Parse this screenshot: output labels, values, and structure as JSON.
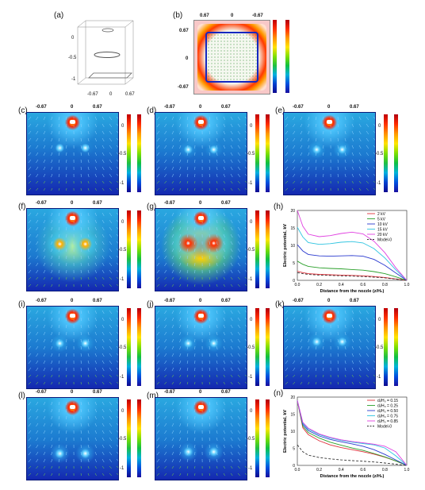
{
  "panels": {
    "a": {
      "label": "(a)",
      "y_ticks": [
        "0",
        "-0.5",
        "-1"
      ],
      "x_ticks": [
        "-0.67",
        "0",
        "0.67"
      ]
    },
    "b": {
      "label": "(b)",
      "x_ticks": [
        "0.67",
        "0",
        "-0.67"
      ],
      "y_ticks": [
        "0.67",
        "0",
        "-0.67"
      ]
    },
    "c": {
      "label": "(c)",
      "x_ticks": [
        "-0.67",
        "0",
        "0.67"
      ],
      "y_ticks": [
        "0",
        "-0.5",
        "-1"
      ]
    },
    "d": {
      "label": "(d)",
      "x_ticks": [
        "-0.67",
        "0",
        "0.67"
      ],
      "y_ticks": [
        "0",
        "-0.5",
        "-1"
      ]
    },
    "e": {
      "label": "(e)",
      "x_ticks": [
        "-0.67",
        "0",
        "0.67"
      ],
      "y_ticks": [
        "0",
        "-0.5",
        "-1"
      ]
    },
    "f": {
      "label": "(f)",
      "x_ticks": [
        "-0.67",
        "0",
        "0.67"
      ],
      "y_ticks": [
        "0",
        "-0.5",
        "-1"
      ]
    },
    "g": {
      "label": "(g)",
      "x_ticks": [
        "-0.67",
        "0",
        "0.67"
      ],
      "y_ticks": [
        "0",
        "-0.5",
        "-1"
      ]
    },
    "h": {
      "label": "(h)"
    },
    "i": {
      "label": "(i)",
      "x_ticks": [
        "-0.67",
        "0",
        "0.67"
      ],
      "y_ticks": [
        "0",
        "-0.5",
        "-1"
      ]
    },
    "j": {
      "label": "(j)",
      "x_ticks": [
        "-0.67",
        "0",
        "0.67"
      ],
      "y_ticks": [
        "0",
        "-0.5",
        "-1"
      ]
    },
    "k": {
      "label": "(k)",
      "x_ticks": [
        "-0.67",
        "0",
        "0.67"
      ],
      "y_ticks": [
        "0",
        "-0.5",
        "-1"
      ]
    },
    "l": {
      "label": "(l)",
      "x_ticks": [
        "-0.67",
        "0",
        "0.67"
      ],
      "y_ticks": [
        "0",
        "-0.5",
        "-1"
      ]
    },
    "m": {
      "label": "(m)",
      "x_ticks": [
        "-0.67",
        "0",
        "0.67"
      ],
      "y_ticks": [
        "0",
        "-0.5",
        "-1"
      ]
    },
    "n": {
      "label": "(n)"
    }
  },
  "colors": {
    "field_low": "#1220a8",
    "field_mid": "#1f9bd6",
    "hot": "#ffffff",
    "vector": "#8fd3ff",
    "vector_bottom": "#7ddc3a"
  },
  "chart_data": [
    {
      "type": "line",
      "panel": "h",
      "xlabel": "Distance from the nozzle (z/H₀)",
      "ylabel": "Electric potential, kV",
      "xlim": [
        0,
        1.0
      ],
      "ylim": [
        0,
        20
      ],
      "x_ticks": [
        "0.0",
        "0.2",
        "0.4",
        "0.6",
        "0.8",
        "1.0"
      ],
      "y_ticks": [
        "0",
        "5",
        "10",
        "15",
        "20"
      ],
      "legend_position": "top-right",
      "x": [
        0,
        0.05,
        0.1,
        0.2,
        0.3,
        0.4,
        0.5,
        0.6,
        0.7,
        0.8,
        0.9,
        1.0
      ],
      "series": [
        {
          "name": "2 kV",
          "color": "#e0303a",
          "dash": false,
          "values": [
            2.6,
            2.2,
            1.9,
            1.7,
            1.6,
            1.5,
            1.4,
            1.3,
            1.1,
            0.8,
            0.4,
            0.0
          ]
        },
        {
          "name": "5 kV",
          "color": "#2aa02a",
          "dash": false,
          "values": [
            5.5,
            4.6,
            4.0,
            3.6,
            3.4,
            3.3,
            3.1,
            2.9,
            2.5,
            1.9,
            1.0,
            0.0
          ]
        },
        {
          "name": "10 kV",
          "color": "#2a3acf",
          "dash": false,
          "values": [
            10.2,
            8.4,
            7.4,
            7.0,
            6.9,
            7.0,
            7.1,
            6.9,
            6.0,
            4.3,
            2.1,
            0.0
          ]
        },
        {
          "name": "15 kV",
          "color": "#2ec4e0",
          "dash": false,
          "values": [
            15.2,
            12.4,
            10.8,
            10.3,
            10.5,
            10.9,
            11.1,
            10.7,
            9.1,
            6.4,
            3.0,
            0.0
          ]
        },
        {
          "name": "20 kV",
          "color": "#e040e0",
          "dash": false,
          "values": [
            20.0,
            15.5,
            13.2,
            12.5,
            12.8,
            13.4,
            13.8,
            13.3,
            11.2,
            7.9,
            3.6,
            0.0
          ]
        },
        {
          "name": "Model-0",
          "color": "#333333",
          "dash": true,
          "values": [
            2.2,
            1.9,
            1.7,
            1.5,
            1.4,
            1.3,
            1.2,
            1.1,
            0.9,
            0.7,
            0.35,
            0.0
          ]
        }
      ]
    },
    {
      "type": "line",
      "panel": "n",
      "xlabel": "Distance from the nozzle (z/H₀)",
      "ylabel": "Electric potential, kV",
      "xlim": [
        0,
        1.0
      ],
      "ylim": [
        0,
        20
      ],
      "x_ticks": [
        "0.0",
        "0.2",
        "0.4",
        "0.6",
        "0.8",
        "1.0"
      ],
      "y_ticks": [
        "0",
        "5",
        "10",
        "15",
        "20"
      ],
      "legend_position": "top-right",
      "x": [
        0,
        0.05,
        0.1,
        0.2,
        0.3,
        0.4,
        0.5,
        0.6,
        0.7,
        0.8,
        0.9,
        1.0
      ],
      "series": [
        {
          "name": "dᵢ/H₀ = 0.15",
          "color": "#e0303a",
          "dash": false,
          "values": [
            19.0,
            11.0,
            9.0,
            7.2,
            6.0,
            5.2,
            4.6,
            4.0,
            3.3,
            2.4,
            1.3,
            0.0
          ]
        },
        {
          "name": "dᵢ/H₀ = 0.25",
          "color": "#2aa02a",
          "dash": false,
          "values": [
            19.0,
            11.5,
            9.6,
            8.0,
            6.8,
            5.9,
            5.1,
            4.4,
            3.5,
            2.5,
            1.3,
            0.0
          ]
        },
        {
          "name": "dᵢ/H₀ = 0.50",
          "color": "#2a3acf",
          "dash": false,
          "values": [
            19.0,
            12.0,
            10.2,
            8.6,
            7.6,
            6.9,
            6.3,
            5.6,
            4.6,
            3.2,
            1.6,
            0.0
          ]
        },
        {
          "name": "dᵢ/H₀ = 0.75",
          "color": "#2ec4e0",
          "dash": false,
          "values": [
            19.0,
            12.4,
            10.6,
            9.0,
            8.0,
            7.3,
            6.8,
            6.4,
            6.0,
            5.1,
            2.8,
            0.0
          ]
        },
        {
          "name": "dᵢ/H₀ = 0.85",
          "color": "#e040e0",
          "dash": false,
          "values": [
            19.0,
            12.6,
            10.9,
            9.2,
            8.2,
            7.5,
            7.0,
            6.6,
            6.2,
            5.6,
            4.0,
            0.0
          ]
        },
        {
          "name": "Model-0",
          "color": "#333333",
          "dash": true,
          "values": [
            6.0,
            4.0,
            3.0,
            2.3,
            1.9,
            1.6,
            1.4,
            1.2,
            1.0,
            0.7,
            0.35,
            0.0
          ]
        }
      ]
    }
  ]
}
